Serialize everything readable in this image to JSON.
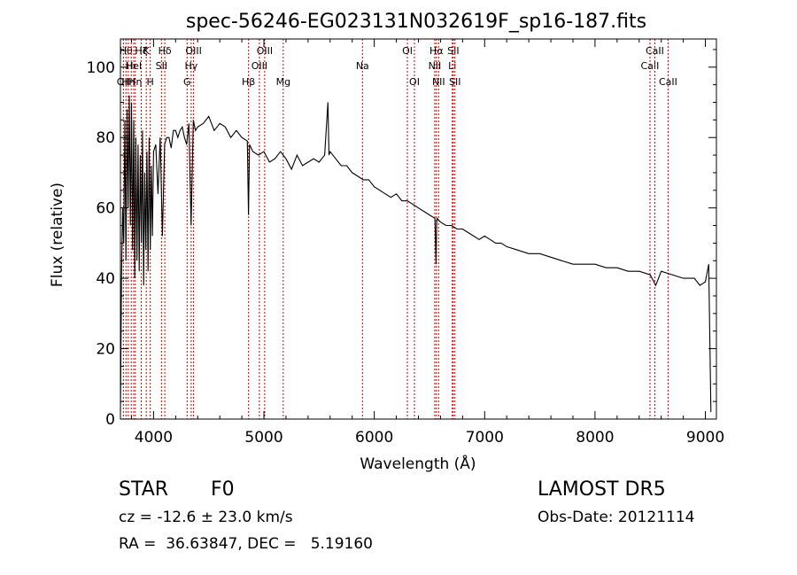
{
  "chart_data": {
    "type": "line",
    "title": "spec-56246-EG023131N032619F_sp16-187.fits",
    "xlabel": "Wavelength (Å)",
    "ylabel": "Flux (relative)",
    "xlim": [
      3700,
      9100
    ],
    "ylim": [
      0,
      108
    ],
    "xticks": [
      4000,
      5000,
      6000,
      7000,
      8000,
      9000
    ],
    "yticks": [
      0,
      20,
      40,
      60,
      80,
      100
    ],
    "x_tick_labels": [
      "4000",
      "5000",
      "6000",
      "7000",
      "8000",
      "9000"
    ],
    "y_tick_labels": [
      "0",
      "20",
      "40",
      "60",
      "80",
      "100"
    ],
    "line_color": "#000000",
    "marker_color": "#cc0000",
    "grid": false,
    "series": [
      {
        "x": [
          3700,
          3710,
          3720,
          3730,
          3740,
          3750,
          3760,
          3770,
          3780,
          3790,
          3800,
          3810,
          3820,
          3830,
          3840,
          3850,
          3860,
          3870,
          3880,
          3890,
          3900,
          3910,
          3920,
          3930,
          3940,
          3950,
          3960,
          3970,
          3980,
          3990,
          4000,
          4020,
          4040,
          4060,
          4080,
          4100,
          4120,
          4140,
          4160,
          4180,
          4200,
          4220,
          4240,
          4260,
          4280,
          4300,
          4320,
          4340,
          4360,
          4380,
          4400,
          4450,
          4500,
          4550,
          4600,
          4650,
          4700,
          4750,
          4800,
          4850,
          4860,
          4870,
          4900,
          4950,
          5000,
          5050,
          5100,
          5150,
          5200,
          5250,
          5300,
          5350,
          5400,
          5450,
          5500,
          5550,
          5580,
          5590,
          5600,
          5650,
          5700,
          5750,
          5800,
          5850,
          5900,
          5950,
          6000,
          6050,
          6100,
          6150,
          6200,
          6250,
          6300,
          6350,
          6400,
          6450,
          6500,
          6550,
          6560,
          6565,
          6570,
          6600,
          6650,
          6700,
          6750,
          6800,
          6850,
          6900,
          6950,
          7000,
          7050,
          7100,
          7150,
          7200,
          7300,
          7400,
          7500,
          7600,
          7700,
          7800,
          7900,
          8000,
          8100,
          8200,
          8300,
          8400,
          8500,
          8550,
          8600,
          8700,
          8800,
          8900,
          8950,
          9000,
          9030,
          9050
        ],
        "y": [
          2,
          40,
          60,
          50,
          85,
          45,
          88,
          60,
          92,
          55,
          90,
          48,
          85,
          40,
          80,
          45,
          78,
          42,
          75,
          50,
          82,
          38,
          70,
          48,
          76,
          42,
          80,
          48,
          72,
          52,
          76,
          78,
          64,
          80,
          52,
          78,
          80,
          80,
          77,
          82,
          82,
          80,
          82,
          83,
          80,
          78,
          84,
          55,
          85,
          82,
          83,
          84,
          86,
          82,
          84,
          83,
          80,
          82,
          80,
          79,
          58,
          78,
          76,
          75,
          76,
          73,
          74,
          76,
          74,
          71,
          75,
          72,
          73,
          74,
          73,
          75,
          90,
          75,
          76,
          74,
          72,
          72,
          70,
          69,
          68,
          68,
          66,
          65,
          64,
          63,
          64,
          62,
          62,
          61,
          60,
          59,
          58,
          57,
          44,
          56,
          57,
          56,
          55,
          55,
          54,
          54,
          53,
          52,
          51,
          52,
          51,
          50,
          50,
          49,
          48,
          47,
          47,
          46,
          45,
          44,
          44,
          44,
          43,
          43,
          42,
          42,
          41,
          38,
          42,
          41,
          40,
          40,
          38,
          39,
          44,
          2
        ]
      }
    ],
    "lines": [
      {
        "wavelength": 3727,
        "label": "OII",
        "row": 3
      },
      {
        "wavelength": 3750,
        "label": "Hθ",
        "row": 1
      },
      {
        "wavelength": 3771,
        "label": "Hη",
        "row": 3
      },
      {
        "wavelength": 3798,
        "label": "Hι",
        "row": 2
      },
      {
        "wavelength": 3820,
        "label": "HeI",
        "row": 2
      },
      {
        "wavelength": 3835,
        "label": "Hη",
        "row": 3
      },
      {
        "wavelength": 3889,
        "label": "Hζ",
        "row": 1
      },
      {
        "wavelength": 3934,
        "label": "K",
        "row": 1
      },
      {
        "wavelength": 3970,
        "label": "H",
        "row": 3
      },
      {
        "wavelength": 4072,
        "label": "SII",
        "row": 2
      },
      {
        "wavelength": 4102,
        "label": "Hδ",
        "row": 1
      },
      {
        "wavelength": 4304,
        "label": "G",
        "row": 3
      },
      {
        "wavelength": 4341,
        "label": "Hγ",
        "row": 2
      },
      {
        "wavelength": 4363,
        "label": "OIII",
        "row": 1
      },
      {
        "wavelength": 4861,
        "label": "Hβ",
        "row": 3
      },
      {
        "wavelength": 4959,
        "label": "OIII",
        "row": 2
      },
      {
        "wavelength": 5007,
        "label": "OIII",
        "row": 1
      },
      {
        "wavelength": 5175,
        "label": "Mg",
        "row": 3
      },
      {
        "wavelength": 5893,
        "label": "Na",
        "row": 2
      },
      {
        "wavelength": 6300,
        "label": "OI",
        "row": 1
      },
      {
        "wavelength": 6364,
        "label": "OI",
        "row": 3
      },
      {
        "wavelength": 6548,
        "label": "NII",
        "row": 2
      },
      {
        "wavelength": 6563,
        "label": "Hα",
        "row": 1
      },
      {
        "wavelength": 6583,
        "label": "NII",
        "row": 3
      },
      {
        "wavelength": 6707,
        "label": "Li",
        "row": 2
      },
      {
        "wavelength": 6716,
        "label": "SII",
        "row": 1
      },
      {
        "wavelength": 6731,
        "label": "SII",
        "row": 3
      },
      {
        "wavelength": 8498,
        "label": "CaII",
        "row": 2
      },
      {
        "wavelength": 8542,
        "label": "CaII",
        "row": 1
      },
      {
        "wavelength": 8662,
        "label": "CaII",
        "row": 3
      }
    ]
  },
  "info": {
    "class_label": "STAR",
    "subclass_label": "F0",
    "survey_label": "LAMOST DR5",
    "cz_line": "cz = -12.6 ± 23.0 km/s",
    "obs_date_line": "Obs-Date: 20121114",
    "radec_line": "RA =  36.63847, DEC =   5.19160"
  }
}
